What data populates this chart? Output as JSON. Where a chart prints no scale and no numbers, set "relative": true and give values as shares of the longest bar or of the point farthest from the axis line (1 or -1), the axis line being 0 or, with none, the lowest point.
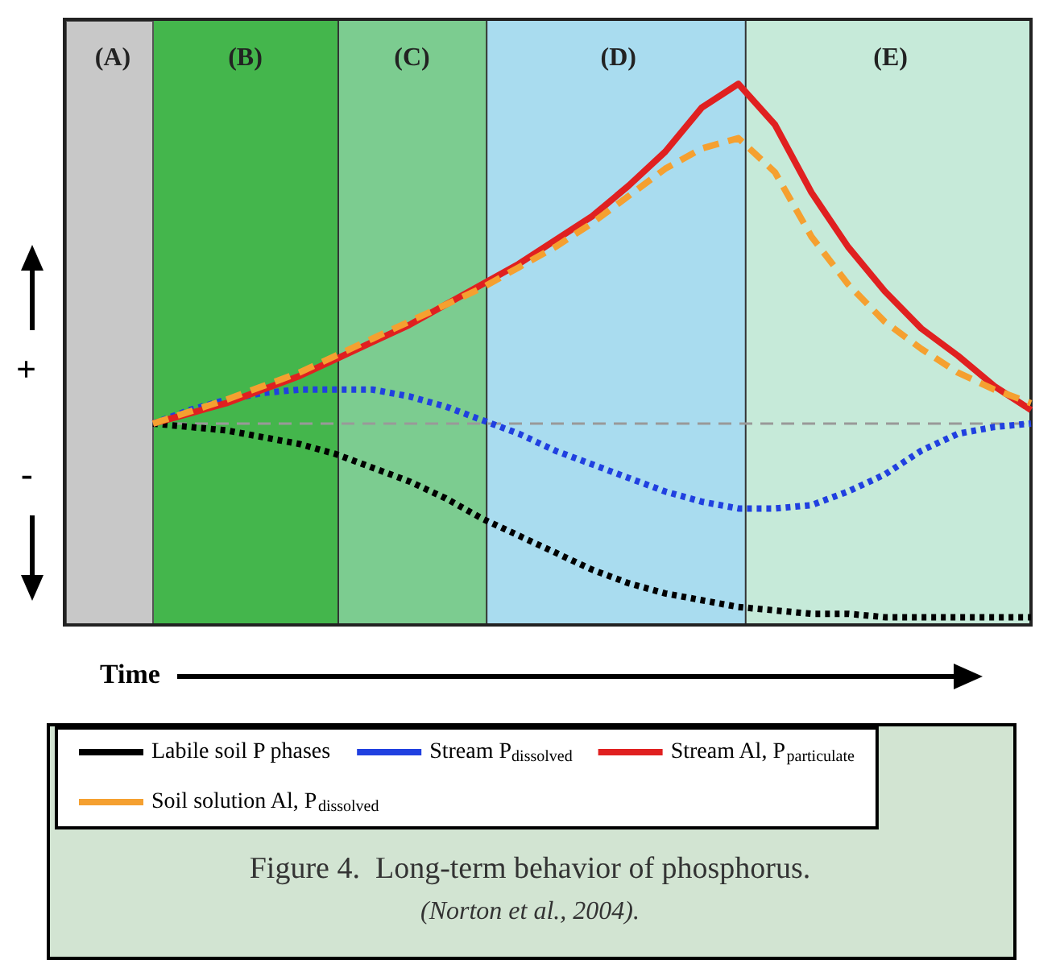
{
  "chart_data": {
    "type": "line",
    "relative": true,
    "marker": "none",
    "legend": "bottom",
    "grid": false,
    "categories": [
      null,
      null,
      null,
      null,
      null,
      null,
      null,
      null,
      null,
      null,
      null,
      null,
      null,
      null,
      null,
      null,
      null,
      null,
      null,
      null,
      null,
      null,
      null,
      null,
      null
    ],
    "series": [
      {
        "name": "Labile soil P phases",
        "color": "#000000",
        "line_style": "dotted",
        "values": [
          0,
          -0.01,
          -0.02,
          -0.04,
          -0.06,
          -0.09,
          -0.13,
          -0.17,
          -0.22,
          -0.28,
          -0.33,
          -0.38,
          -0.43,
          -0.47,
          -0.5,
          -0.52,
          -0.54,
          -0.55,
          -0.56,
          -0.56,
          -0.57,
          -0.57,
          -0.57,
          -0.57,
          -0.57
        ]
      },
      {
        "name": "Stream P$_{dissolved}$",
        "color": "#2040e0",
        "line_style": "dotted",
        "values": [
          0,
          0.04,
          0.07,
          0.09,
          0.1,
          0.1,
          0.1,
          0.08,
          0.05,
          0.01,
          -0.03,
          -0.08,
          -0.12,
          -0.16,
          -0.2,
          -0.23,
          -0.25,
          -0.25,
          -0.24,
          -0.2,
          -0.15,
          -0.08,
          -0.03,
          -0.01,
          0
        ]
      },
      {
        "name": "Stream Al, P$_{particulate}$",
        "color": "#e02020",
        "line_style": "solid",
        "values": [
          0,
          0.03,
          0.06,
          0.1,
          0.14,
          0.19,
          0.24,
          0.29,
          0.35,
          0.41,
          0.47,
          0.54,
          0.61,
          0.7,
          0.8,
          0.93,
          1,
          0.88,
          0.68,
          0.52,
          0.39,
          0.28,
          0.2,
          0.11,
          0.04
        ]
      },
      {
        "name": "Soil solution Al, P$_{dissolved}$",
        "color": "#f5a030",
        "line_style": "dashed",
        "values": [
          0,
          0.035,
          0.07,
          0.11,
          0.15,
          0.2,
          0.25,
          0.3,
          0.35,
          0.4,
          0.46,
          0.52,
          0.59,
          0.67,
          0.75,
          0.81,
          0.84,
          0.74,
          0.55,
          0.41,
          0.3,
          0.22,
          0.15,
          0.1,
          0.06
        ]
      }
    ],
    "ref_lines": [
      {
        "axis": "y",
        "value": 0,
        "color": "#999999",
        "line_style": "dashed"
      }
    ],
    "annotations": [
      "(A)",
      "(B)",
      "(C)",
      "(D)",
      "(E)",
      "+",
      "-",
      "Time",
      "Figure 4.  Long-term behavior of phosphorus.",
      "(Norton et al., 2004)."
    ]
  }
}
